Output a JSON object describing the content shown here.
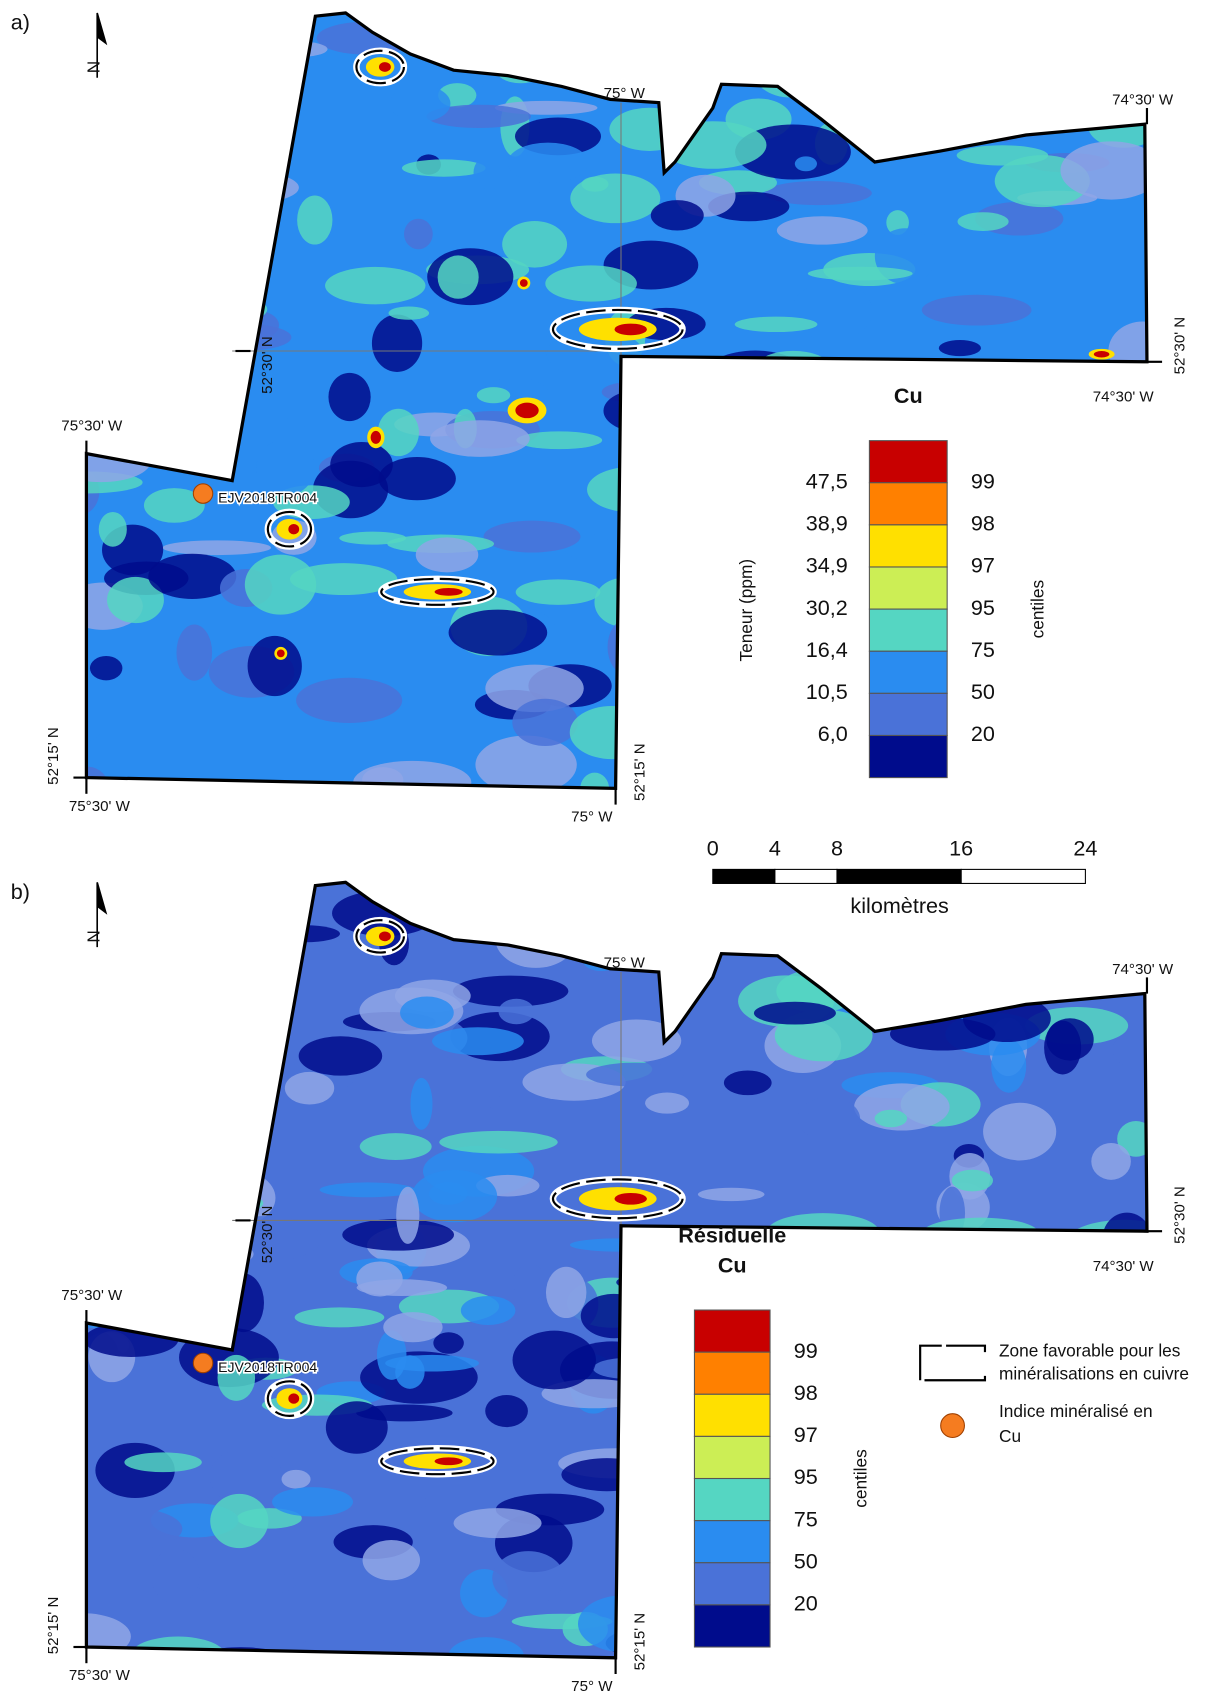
{
  "panels": [
    {
      "label": "a)",
      "north": "N",
      "coords": [
        "75° W",
        "74°30' W",
        "52°30' N",
        "52°30' N",
        "74°30' W",
        "75°30' W",
        "52°15' N",
        "52°15' N",
        "75°30' W",
        "75° W"
      ],
      "point_label": "EJV2018TR004",
      "legend": {
        "title": [
          "Cu"
        ],
        "axis_label": "Teneur (ppm)",
        "values": [
          "47,5",
          "38,9",
          "34,9",
          "30,2",
          "16,4",
          "10,5",
          "6,0"
        ],
        "centiles": [
          99,
          98,
          97,
          95,
          75,
          50,
          20
        ],
        "centiles_label": "centiles"
      }
    },
    {
      "label": "b)",
      "north": "N",
      "coords": [
        "75° W",
        "74°30' W",
        "52°30' N",
        "52°30' N",
        "74°30' W",
        "75°30' W",
        "52°15' N",
        "52°15' N",
        "75°30' W",
        "75° W"
      ],
      "point_label": "EJV2018TR004",
      "legend": {
        "title": [
          "Résiduelle",
          "Cu"
        ],
        "centiles": [
          99,
          98,
          97,
          95,
          75,
          50,
          20
        ],
        "centiles_label": "centiles"
      }
    }
  ],
  "scale_bar": {
    "ticks": [
      0,
      4,
      8,
      16,
      24
    ],
    "unit": "kilomètres"
  },
  "key": {
    "zone": [
      "Zone favorable pour les",
      "minéralisations en cuivre"
    ],
    "indice": [
      "Indice minéralisé en",
      "Cu"
    ]
  }
}
